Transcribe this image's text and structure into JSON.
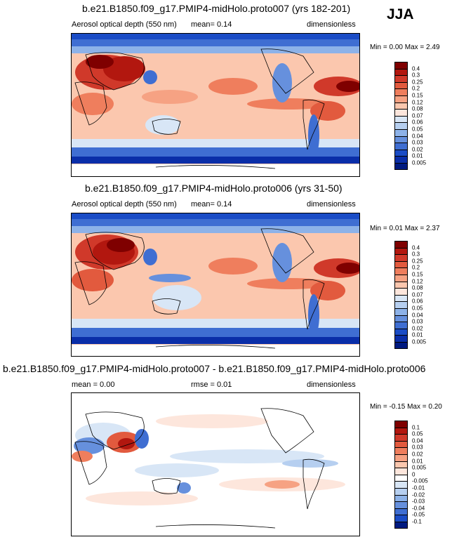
{
  "season": "JJA",
  "panels": [
    {
      "title": "b.e21.B1850.f09_g17.PMIP4-midHolo.proto007 (yrs 182-201)",
      "left_label": "Aerosol optical depth (550 nm)",
      "mid_label": "mean=  0.14",
      "right_label": "dimensionless",
      "min_max": "Min =  0.00 Max =  2.49",
      "colorbar_levels": [
        "0.4",
        "0.3",
        "0.25",
        "0.2",
        "0.15",
        "0.12",
        "0.08",
        "0.07",
        "0.06",
        "0.05",
        "0.04",
        "0.03",
        "0.02",
        "0.01",
        "0.005"
      ]
    },
    {
      "title": "b.e21.B1850.f09_g17.PMIP4-midHolo.proto006 (yrs 31-50)",
      "left_label": "Aerosol optical depth (550 nm)",
      "mid_label": "mean=  0.14",
      "right_label": "dimensionless",
      "min_max": "Min =  0.01 Max =  2.37",
      "colorbar_levels": [
        "0.4",
        "0.3",
        "0.25",
        "0.2",
        "0.15",
        "0.12",
        "0.08",
        "0.07",
        "0.06",
        "0.05",
        "0.04",
        "0.03",
        "0.02",
        "0.01",
        "0.005"
      ]
    },
    {
      "title": "b.e21.B1850.f09_g17.PMIP4-midHolo.proto007 - b.e21.B1850.f09_g17.PMIP4-midHolo.proto006",
      "left_label": "mean =   0.00",
      "mid_label": "rmse =   0.01",
      "right_label": "dimensionless",
      "min_max": "Min =  -0.15 Max =  0.20",
      "colorbar_levels": [
        "0.1",
        "0.05",
        "0.04",
        "0.03",
        "0.02",
        "0.01",
        "0.005",
        "0",
        "-0.005",
        "-0.01",
        "-0.02",
        "-0.03",
        "-0.04",
        "-0.05",
        "-0.1"
      ]
    }
  ],
  "colors": {
    "seq": [
      "#7f0000",
      "#b2170f",
      "#d0392a",
      "#e25a3e",
      "#ef7e5d",
      "#f6a283",
      "#fbc7ae",
      "#fde6dc",
      "#d8e6f6",
      "#b6cff0",
      "#8db2e8",
      "#6690dd",
      "#3f6ed2",
      "#1a4cc6",
      "#0a2ea8",
      "#001a80"
    ],
    "div": [
      "#7f0000",
      "#b2170f",
      "#d0392a",
      "#e25a3e",
      "#ef7e5d",
      "#f6a283",
      "#fbc7ae",
      "#fde6dc",
      "#ffffff",
      "#d8e6f6",
      "#b6cff0",
      "#8db2e8",
      "#6690dd",
      "#3f6ed2",
      "#1a4cc6",
      "#0a2ea8",
      "#001a80"
    ]
  }
}
